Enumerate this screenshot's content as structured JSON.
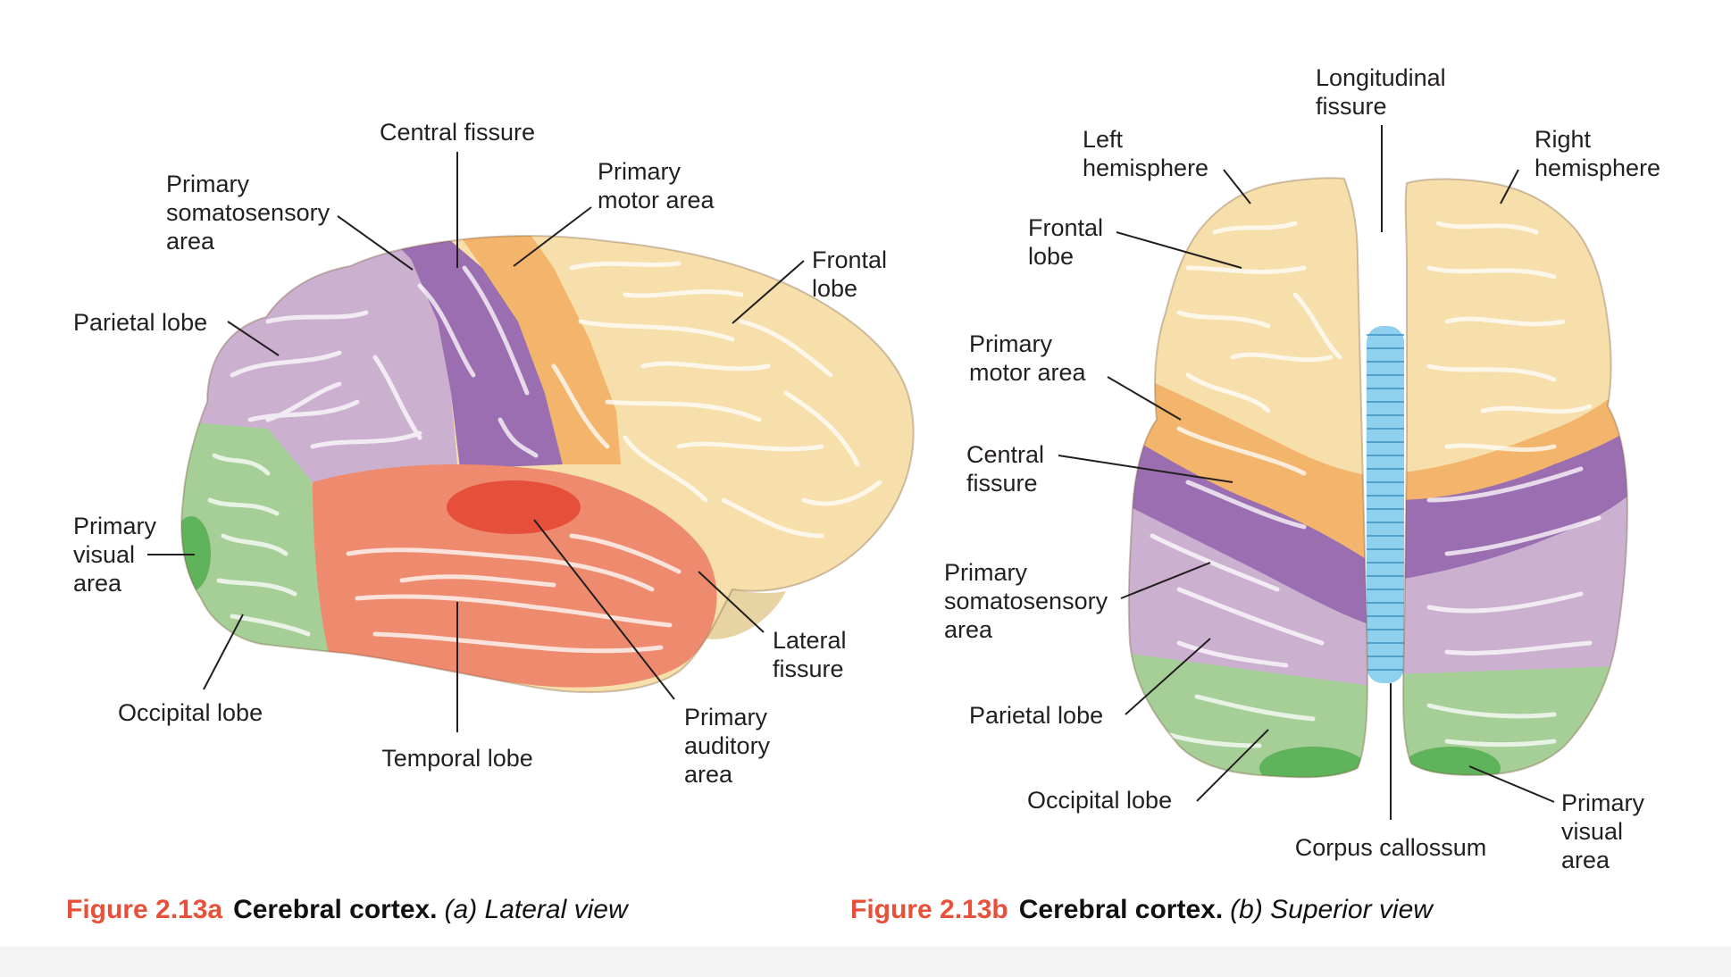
{
  "figure_a": {
    "caption": {
      "number": "Figure 2.13a",
      "title": "Cerebral cortex.",
      "subtitle": "(a) Lateral view"
    },
    "labels": {
      "central_fissure": [
        "Central fissure"
      ],
      "primary_somatosensory_area": [
        "Primary",
        "somatosensory",
        "area"
      ],
      "primary_motor_area": [
        "Primary",
        "motor area"
      ],
      "frontal_lobe": [
        "Frontal",
        "lobe"
      ],
      "parietal_lobe": [
        "Parietal lobe"
      ],
      "primary_visual_area": [
        "Primary",
        "visual",
        "area"
      ],
      "occipital_lobe": [
        "Occipital lobe"
      ],
      "temporal_lobe": [
        "Temporal lobe"
      ],
      "lateral_fissure": [
        "Lateral",
        "fissure"
      ],
      "primary_auditory_area": [
        "Primary",
        "auditory",
        "area"
      ]
    }
  },
  "figure_b": {
    "caption": {
      "number": "Figure 2.13b",
      "title": "Cerebral cortex.",
      "subtitle": "(b) Superior view"
    },
    "labels": {
      "longitudinal_fissure": [
        "Longitudinal",
        "fissure"
      ],
      "left_hemisphere": [
        "Left",
        "hemisphere"
      ],
      "right_hemisphere": [
        "Right",
        "hemisphere"
      ],
      "frontal_lobe": [
        "Frontal",
        "lobe"
      ],
      "primary_motor_area": [
        "Primary",
        "motor area"
      ],
      "central_fissure": [
        "Central",
        "fissure"
      ],
      "primary_somatosensory_area": [
        "Primary",
        "somatosensory",
        "area"
      ],
      "parietal_lobe": [
        "Parietal lobe"
      ],
      "occipital_lobe": [
        "Occipital lobe"
      ],
      "corpus_callosum": [
        "Corpus callossum"
      ],
      "primary_visual_area": [
        "Primary",
        "visual",
        "area"
      ]
    }
  },
  "colors": {
    "frontal": "#f7dfab",
    "motor": "#f3b56c",
    "somatosensory": "#9a6eb0",
    "parietal": "#cbb0cf",
    "occipital": "#a6cf98",
    "visual": "#5fb35a",
    "temporal": "#ee8a6e",
    "auditory": "#e6503a",
    "corpus_callosum": "#8fd0ef",
    "caption_number": "#e8503a"
  }
}
